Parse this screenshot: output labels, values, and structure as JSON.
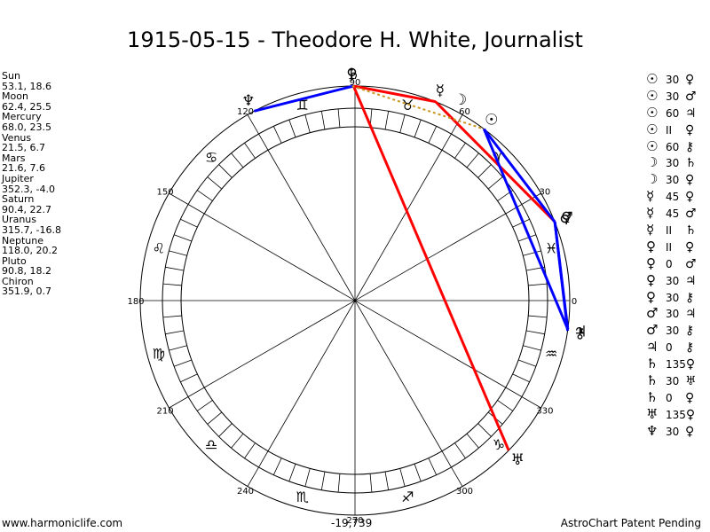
{
  "title": "1915-05-15 - Theodore H. White, Journalist",
  "planets": [
    {
      "name": "Sun",
      "value": "53.1, 18.6"
    },
    {
      "name": "Moon",
      "value": "62.4, 25.5"
    },
    {
      "name": "Mercury",
      "value": "68.0, 23.5"
    },
    {
      "name": "Venus",
      "value": "21.5, 6.7"
    },
    {
      "name": "Mars",
      "value": "21.6, 7.6"
    },
    {
      "name": "Jupiter",
      "value": "352.3, -4.0"
    },
    {
      "name": "Saturn",
      "value": "90.4, 22.7"
    },
    {
      "name": "Uranus",
      "value": "315.7, -16.8"
    },
    {
      "name": "Neptune",
      "value": "118.0, 20.2"
    },
    {
      "name": "Pluto",
      "value": "90.8, 18.2"
    },
    {
      "name": "Chiron",
      "value": "351.9, 0.7"
    }
  ],
  "aspects": [
    {
      "p1": "☉",
      "angle": "30",
      "p2": "♀"
    },
    {
      "p1": "☉",
      "angle": "30",
      "p2": "♂"
    },
    {
      "p1": "☉",
      "angle": "60",
      "p2": "♃"
    },
    {
      "p1": "☉",
      "angle": "II",
      "p2": "♀"
    },
    {
      "p1": "☉",
      "angle": "60",
      "p2": "⚷"
    },
    {
      "p1": "☽",
      "angle": "30",
      "p2": "♄"
    },
    {
      "p1": "☽",
      "angle": "30",
      "p2": "♀"
    },
    {
      "p1": "☿",
      "angle": "45",
      "p2": "♀"
    },
    {
      "p1": "☿",
      "angle": "45",
      "p2": "♂"
    },
    {
      "p1": "☿",
      "angle": "II",
      "p2": "♄"
    },
    {
      "p1": "♀",
      "angle": "II",
      "p2": "♀"
    },
    {
      "p1": "♀",
      "angle": "0",
      "p2": "♂"
    },
    {
      "p1": "♀",
      "angle": "30",
      "p2": "♃"
    },
    {
      "p1": "♀",
      "angle": "30",
      "p2": "⚷"
    },
    {
      "p1": "♂",
      "angle": "30",
      "p2": "♃"
    },
    {
      "p1": "♂",
      "angle": "30",
      "p2": "⚷"
    },
    {
      "p1": "♃",
      "angle": "0",
      "p2": "⚷"
    },
    {
      "p1": "♄",
      "angle": "135",
      "p2": "♀"
    },
    {
      "p1": "♄",
      "angle": "30",
      "p2": "♅"
    },
    {
      "p1": "♄",
      "angle": "0",
      "p2": "♀"
    },
    {
      "p1": "♅",
      "angle": "135",
      "p2": "♀"
    },
    {
      "p1": "♆",
      "angle": "30",
      "p2": "♀"
    }
  ],
  "wheel": {
    "degree_labels": [
      "0",
      "30",
      "60",
      "90",
      "120",
      "150",
      "180",
      "210",
      "240",
      "270",
      "300",
      "330"
    ],
    "zodiac_glyphs": [
      "♓",
      "♈",
      "♉",
      "♊",
      "♋",
      "♌",
      "♍",
      "♎",
      "♏",
      "♐",
      "♑",
      "♒"
    ],
    "chart_planets": [
      {
        "glyph": "☉",
        "lon": 53.1
      },
      {
        "glyph": "☽",
        "lon": 62.4
      },
      {
        "glyph": "☿",
        "lon": 68.0
      },
      {
        "glyph": "♀",
        "lon": 21.5
      },
      {
        "glyph": "♂",
        "lon": 21.6
      },
      {
        "glyph": "♃",
        "lon": 352.3
      },
      {
        "glyph": "♄",
        "lon": 90.4
      },
      {
        "glyph": "♅",
        "lon": 315.7
      },
      {
        "glyph": "♆",
        "lon": 118.0
      },
      {
        "glyph": "♀",
        "lon": 90.8
      },
      {
        "glyph": "⚷",
        "lon": 351.9
      }
    ],
    "aspect_lines": [
      {
        "from": 90.4,
        "to": 315.7,
        "color": "#ff0000"
      },
      {
        "from": 90.4,
        "to": 68.0,
        "color": "#ff0000"
      },
      {
        "from": 68.0,
        "to": 21.6,
        "color": "#ff0000"
      },
      {
        "from": 90.4,
        "to": 118.0,
        "color": "#0000ff"
      },
      {
        "from": 53.1,
        "to": 21.5,
        "color": "#0000ff"
      },
      {
        "from": 53.1,
        "to": 352.3,
        "color": "#0000ff"
      },
      {
        "from": 21.5,
        "to": 352.3,
        "color": "#0000ff"
      },
      {
        "from": 21.5,
        "to": 351.9,
        "color": "#0000ff"
      },
      {
        "from": 90.8,
        "to": 53.1,
        "color": "#c8961e",
        "dashed": true
      }
    ]
  },
  "footer": {
    "left": "www.harmoniclife.com",
    "center": "-19,739",
    "right": "AstroChart Patent Pending"
  }
}
